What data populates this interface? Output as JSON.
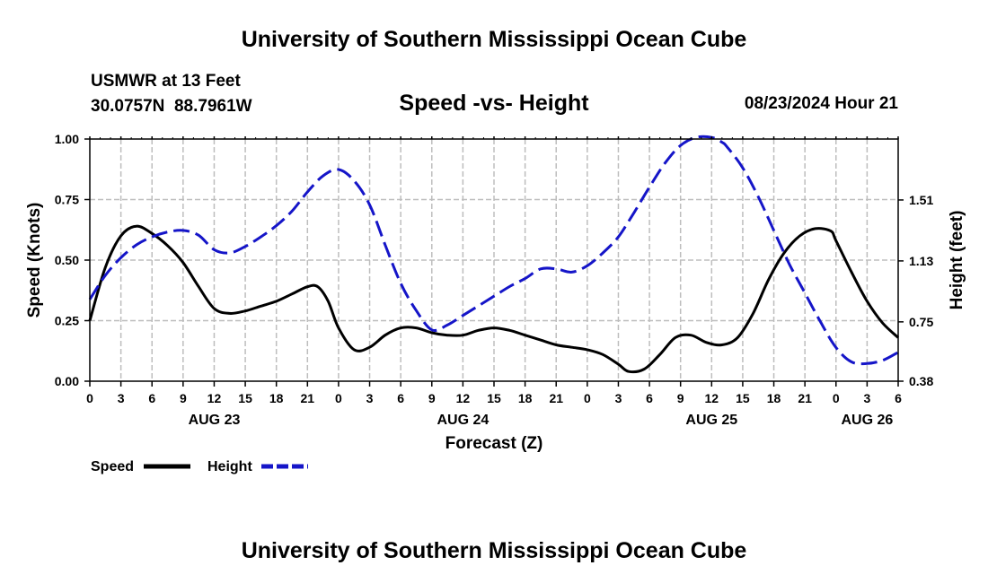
{
  "header": {
    "title": "University of Southern Mississippi Ocean Cube",
    "station_name": "USMWR at 13 Feet",
    "station_coords": "30.0757N  88.7961W",
    "datetime": "08/23/2024 Hour 21"
  },
  "footer": {
    "title": "University of Southern Mississippi Ocean Cube"
  },
  "chart_data": {
    "type": "line",
    "title": "Speed -vs- Height",
    "xlabel": "Forecast (Z)",
    "ylabel": "Speed (Knots)",
    "y2label": "Height (feet)",
    "x_unit": "forecast hours from Aug 23 00Z",
    "xlim": [
      0,
      78
    ],
    "ylim": [
      0,
      1.0
    ],
    "y2lim": [
      0.38,
      1.89
    ],
    "y_ticks": [
      "0.00",
      "0.25",
      "0.50",
      "0.75",
      "1.00"
    ],
    "y2_ticks": [
      "0.38",
      "0.75",
      "1.13",
      "1.51"
    ],
    "y2_tick_values": [
      0.38,
      0.75,
      1.13,
      1.51
    ],
    "x_ticks": [
      "0",
      "3",
      "6",
      "9",
      "12",
      "15",
      "18",
      "21",
      "0",
      "3",
      "6",
      "9",
      "12",
      "15",
      "18",
      "21",
      "0",
      "3",
      "6",
      "9",
      "12",
      "15",
      "18",
      "21",
      "0",
      "3",
      "6"
    ],
    "day_labels": [
      {
        "hour": 12,
        "label": "AUG 23"
      },
      {
        "hour": 36,
        "label": "AUG 24"
      },
      {
        "hour": 60,
        "label": "AUG 25"
      },
      {
        "hour": 75,
        "label": "AUG 26"
      }
    ],
    "grid": true,
    "legend_position": "bottom-left",
    "series": [
      {
        "name": "Speed",
        "axis": "left",
        "color": "#000000",
        "dashed": false,
        "x": [
          0,
          1.5,
          3,
          4.5,
          6,
          7.5,
          9,
          10.5,
          12,
          13.5,
          15,
          16.5,
          18,
          19.5,
          21,
          22,
          23,
          24,
          25.5,
          27,
          28.5,
          30,
          31.5,
          33,
          34.5,
          36,
          37.5,
          39,
          40.5,
          42,
          43.5,
          45,
          46.5,
          48,
          49.5,
          51,
          52,
          53.5,
          55,
          56.5,
          58,
          59.5,
          61,
          62.5,
          64,
          65.5,
          67,
          68.5,
          70,
          71.5,
          72,
          73.5,
          75,
          76.5,
          78
        ],
        "y": [
          0.25,
          0.47,
          0.6,
          0.64,
          0.61,
          0.56,
          0.49,
          0.39,
          0.3,
          0.28,
          0.29,
          0.31,
          0.33,
          0.36,
          0.39,
          0.39,
          0.33,
          0.22,
          0.13,
          0.14,
          0.19,
          0.22,
          0.22,
          0.2,
          0.19,
          0.19,
          0.21,
          0.22,
          0.21,
          0.19,
          0.17,
          0.15,
          0.14,
          0.13,
          0.11,
          0.07,
          0.04,
          0.05,
          0.11,
          0.18,
          0.19,
          0.16,
          0.15,
          0.18,
          0.28,
          0.42,
          0.53,
          0.6,
          0.63,
          0.62,
          0.58,
          0.45,
          0.33,
          0.24,
          0.18
        ]
      },
      {
        "name": "Height",
        "axis": "right",
        "color": "#1515c8",
        "dashed": true,
        "x": [
          0,
          1.5,
          3,
          4.5,
          6,
          7.5,
          9,
          10.5,
          12,
          13.5,
          15,
          16.5,
          18,
          19.5,
          21,
          22.5,
          24,
          25.5,
          27,
          28.5,
          30,
          31.5,
          33,
          34.5,
          36,
          37.5,
          39,
          40.5,
          42,
          43.5,
          45,
          46.5,
          48,
          49.5,
          51,
          52.5,
          54,
          55.5,
          57,
          58.5,
          60,
          61,
          61.5,
          63,
          64.5,
          66,
          67.5,
          69,
          70.5,
          72,
          73.5,
          75,
          76.5,
          78
        ],
        "y": [
          0.89,
          1.04,
          1.15,
          1.23,
          1.28,
          1.31,
          1.32,
          1.29,
          1.2,
          1.18,
          1.22,
          1.28,
          1.35,
          1.44,
          1.56,
          1.66,
          1.7,
          1.63,
          1.48,
          1.23,
          0.99,
          0.82,
          0.7,
          0.73,
          0.79,
          0.85,
          0.91,
          0.97,
          1.02,
          1.08,
          1.08,
          1.06,
          1.1,
          1.18,
          1.28,
          1.43,
          1.59,
          1.74,
          1.85,
          1.9,
          1.9,
          1.87,
          1.84,
          1.71,
          1.53,
          1.32,
          1.11,
          0.93,
          0.75,
          0.59,
          0.5,
          0.49,
          0.51,
          0.56
        ]
      }
    ]
  }
}
